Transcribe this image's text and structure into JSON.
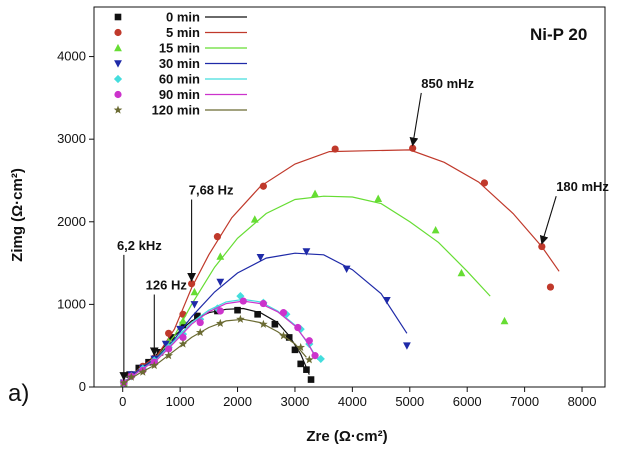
{
  "chart_data": {
    "type": "scatter",
    "panel_label": "a)",
    "title": "Ni-P 20",
    "xlabel": "Zre (Ω·cm²)",
    "ylabel": "Zimg (Ω·cm²)",
    "xlim": [
      -500,
      8400
    ],
    "ylim": [
      0,
      4600
    ],
    "xticks": [
      0,
      1000,
      2000,
      3000,
      4000,
      5000,
      6000,
      7000,
      8000
    ],
    "yticks": [
      0,
      1000,
      2000,
      3000,
      4000
    ],
    "legend_position": "top-left",
    "series": [
      {
        "name": "0 min",
        "color": "#111111",
        "marker": "square",
        "points": [
          [
            20,
            50
          ],
          [
            120,
            150
          ],
          [
            280,
            230
          ],
          [
            450,
            300
          ],
          [
            650,
            420
          ],
          [
            850,
            600
          ],
          [
            1050,
            750
          ],
          [
            1300,
            860
          ],
          [
            1650,
            920
          ],
          [
            2000,
            930
          ],
          [
            2350,
            880
          ],
          [
            2650,
            760
          ],
          [
            2900,
            600
          ],
          [
            3000,
            450
          ],
          [
            3100,
            280
          ],
          [
            3200,
            210
          ],
          [
            3280,
            90
          ]
        ],
        "fit": [
          [
            20,
            50
          ],
          [
            300,
            230
          ],
          [
            600,
            400
          ],
          [
            900,
            620
          ],
          [
            1200,
            800
          ],
          [
            1500,
            900
          ],
          [
            1800,
            940
          ],
          [
            2100,
            950
          ],
          [
            2400,
            900
          ],
          [
            2700,
            780
          ],
          [
            2900,
            620
          ],
          [
            3100,
            400
          ],
          [
            3250,
            150
          ]
        ]
      },
      {
        "name": "5 min",
        "color": "#c0392b",
        "marker": "circle",
        "points": [
          [
            20,
            50
          ],
          [
            150,
            150
          ],
          [
            350,
            250
          ],
          [
            550,
            350
          ],
          [
            800,
            650
          ],
          [
            1050,
            880
          ],
          [
            1200,
            1250
          ],
          [
            1650,
            1820
          ],
          [
            2450,
            2430
          ],
          [
            3700,
            2880
          ],
          [
            5050,
            2890
          ],
          [
            6300,
            2470
          ],
          [
            7300,
            1700
          ],
          [
            7450,
            1210
          ]
        ],
        "fit": [
          [
            20,
            50
          ],
          [
            300,
            230
          ],
          [
            600,
            380
          ],
          [
            900,
            700
          ],
          [
            1200,
            1200
          ],
          [
            1500,
            1600
          ],
          [
            1900,
            2050
          ],
          [
            2400,
            2430
          ],
          [
            3000,
            2700
          ],
          [
            3600,
            2850
          ],
          [
            4300,
            2860
          ],
          [
            5000,
            2870
          ],
          [
            5600,
            2720
          ],
          [
            6200,
            2480
          ],
          [
            6800,
            2100
          ],
          [
            7300,
            1700
          ],
          [
            7600,
            1400
          ]
        ]
      },
      {
        "name": "15 min",
        "color": "#66dd33",
        "marker": "triangle-up",
        "points": [
          [
            20,
            50
          ],
          [
            150,
            150
          ],
          [
            350,
            230
          ],
          [
            550,
            340
          ],
          [
            800,
            550
          ],
          [
            1050,
            800
          ],
          [
            1250,
            1150
          ],
          [
            1700,
            1580
          ],
          [
            2300,
            2030
          ],
          [
            3350,
            2340
          ],
          [
            4450,
            2280
          ],
          [
            5450,
            1900
          ],
          [
            5900,
            1380
          ],
          [
            6650,
            800
          ]
        ],
        "fit": [
          [
            20,
            50
          ],
          [
            300,
            220
          ],
          [
            600,
            360
          ],
          [
            900,
            620
          ],
          [
            1200,
            1000
          ],
          [
            1600,
            1450
          ],
          [
            2000,
            1800
          ],
          [
            2500,
            2100
          ],
          [
            3000,
            2270
          ],
          [
            3500,
            2310
          ],
          [
            4000,
            2300
          ],
          [
            4500,
            2220
          ],
          [
            5000,
            2000
          ],
          [
            5500,
            1750
          ],
          [
            6000,
            1400
          ],
          [
            6400,
            1100
          ]
        ]
      },
      {
        "name": "30 min",
        "color": "#1f2aa8",
        "marker": "triangle-down",
        "points": [
          [
            20,
            50
          ],
          [
            150,
            150
          ],
          [
            350,
            230
          ],
          [
            550,
            340
          ],
          [
            750,
            520
          ],
          [
            1000,
            700
          ],
          [
            1250,
            1000
          ],
          [
            1700,
            1270
          ],
          [
            2400,
            1570
          ],
          [
            3200,
            1640
          ],
          [
            3900,
            1430
          ],
          [
            4600,
            1050
          ],
          [
            4950,
            500
          ]
        ],
        "fit": [
          [
            20,
            50
          ],
          [
            300,
            220
          ],
          [
            600,
            360
          ],
          [
            900,
            580
          ],
          [
            1200,
            850
          ],
          [
            1600,
            1150
          ],
          [
            2000,
            1380
          ],
          [
            2500,
            1560
          ],
          [
            3000,
            1620
          ],
          [
            3500,
            1600
          ],
          [
            4000,
            1420
          ],
          [
            4500,
            1130
          ],
          [
            4950,
            650
          ]
        ]
      },
      {
        "name": "60 min",
        "color": "#44dddd",
        "marker": "diamond",
        "points": [
          [
            20,
            50
          ],
          [
            150,
            130
          ],
          [
            350,
            220
          ],
          [
            550,
            320
          ],
          [
            800,
            480
          ],
          [
            1050,
            640
          ],
          [
            1350,
            820
          ],
          [
            1650,
            950
          ],
          [
            2050,
            1100
          ],
          [
            2450,
            1020
          ],
          [
            2850,
            880
          ],
          [
            3100,
            700
          ],
          [
            3250,
            520
          ],
          [
            3450,
            340
          ]
        ],
        "fit": [
          [
            20,
            50
          ],
          [
            300,
            200
          ],
          [
            600,
            340
          ],
          [
            900,
            560
          ],
          [
            1200,
            780
          ],
          [
            1500,
            930
          ],
          [
            1800,
            1030
          ],
          [
            2100,
            1060
          ],
          [
            2400,
            1030
          ],
          [
            2700,
            920
          ],
          [
            3000,
            750
          ],
          [
            3250,
            500
          ],
          [
            3400,
            330
          ]
        ]
      },
      {
        "name": "90 min",
        "color": "#cc33cc",
        "marker": "circle",
        "points": [
          [
            20,
            50
          ],
          [
            150,
            130
          ],
          [
            350,
            200
          ],
          [
            550,
            300
          ],
          [
            800,
            460
          ],
          [
            1050,
            600
          ],
          [
            1350,
            780
          ],
          [
            1700,
            920
          ],
          [
            2100,
            1040
          ],
          [
            2450,
            1010
          ],
          [
            2800,
            900
          ],
          [
            3050,
            720
          ],
          [
            3250,
            560
          ],
          [
            3350,
            380
          ]
        ],
        "fit": [
          [
            20,
            50
          ],
          [
            300,
            200
          ],
          [
            600,
            330
          ],
          [
            900,
            540
          ],
          [
            1200,
            760
          ],
          [
            1500,
            910
          ],
          [
            1800,
            1010
          ],
          [
            2100,
            1040
          ],
          [
            2400,
            1010
          ],
          [
            2700,
            910
          ],
          [
            3000,
            740
          ],
          [
            3200,
            560
          ],
          [
            3350,
            370
          ]
        ]
      },
      {
        "name": "120 min",
        "color": "#6b6b33",
        "marker": "star",
        "points": [
          [
            20,
            50
          ],
          [
            150,
            120
          ],
          [
            350,
            180
          ],
          [
            550,
            260
          ],
          [
            800,
            380
          ],
          [
            1050,
            520
          ],
          [
            1350,
            660
          ],
          [
            1700,
            770
          ],
          [
            2050,
            820
          ],
          [
            2450,
            760
          ],
          [
            2800,
            620
          ],
          [
            3100,
            480
          ],
          [
            3250,
            330
          ]
        ],
        "fit": [
          [
            20,
            50
          ],
          [
            300,
            170
          ],
          [
            600,
            280
          ],
          [
            900,
            440
          ],
          [
            1200,
            600
          ],
          [
            1500,
            720
          ],
          [
            1800,
            800
          ],
          [
            2100,
            820
          ],
          [
            2400,
            780
          ],
          [
            2700,
            670
          ],
          [
            3000,
            520
          ],
          [
            3200,
            360
          ]
        ]
      }
    ],
    "annotations": [
      {
        "text": "850 mHz",
        "label_x": 5200,
        "label_y": 3620,
        "arrow_to": [
          5050,
          2890
        ]
      },
      {
        "text": "180 mHz",
        "label_x": 7550,
        "label_y": 2370,
        "arrow_to": [
          7300,
          1700
        ]
      },
      {
        "text": "7,68 Hz",
        "label_x": 1150,
        "label_y": 2330,
        "arrow_to": [
          1200,
          1250
        ]
      },
      {
        "text": "126 Hz",
        "label_x": 400,
        "label_y": 1180,
        "arrow_to": [
          550,
          350
        ]
      },
      {
        "text": "6,2 kHz",
        "label_x": -100,
        "label_y": 1660,
        "arrow_to": [
          20,
          50
        ]
      }
    ]
  }
}
